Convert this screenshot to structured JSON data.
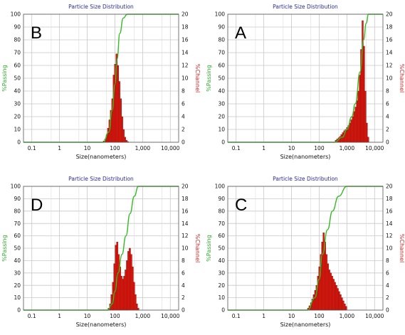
{
  "colors": {
    "grid": "#c8c8c8",
    "plot_border": "#555555",
    "bar_fill": "#e01b10",
    "bar_stroke": "#7a0000",
    "cumulative_line": "#33bb22",
    "title_text": "#2b2b8c"
  },
  "chart_data": [
    {
      "type": "bar",
      "panel_letter": "B",
      "title": "Particle Size Distribution",
      "xlabel": "Size(nanometers)",
      "ylabel_left": "%Passing",
      "ylabel_right": "%Channel",
      "x_scale": "log",
      "xlim": [
        0.05,
        20000
      ],
      "ylim_left": [
        0,
        100
      ],
      "ylim_right": [
        0,
        20
      ],
      "x_ticks": [
        "0.1",
        "1",
        "10",
        "100",
        "1,000",
        "10,000"
      ],
      "y_ticks_left": [
        "0",
        "10",
        "20",
        "30",
        "40",
        "50",
        "60",
        "70",
        "80",
        "90",
        "100"
      ],
      "y_ticks_right": [
        "0",
        "2",
        "4",
        "6",
        "8",
        "10",
        "12",
        "14",
        "16",
        "18",
        "20"
      ],
      "grid": true,
      "channel_sizes_nm": [
        40,
        45,
        51,
        57,
        64,
        72,
        81,
        91,
        102,
        115,
        129,
        145,
        163,
        183,
        206,
        232,
        261,
        293
      ],
      "channel_percent": [
        0.2,
        0.5,
        1.2,
        2.2,
        3.5,
        5.0,
        6.8,
        10.5,
        12.2,
        13.8,
        12.0,
        9.5,
        6.8,
        4.0,
        2.0,
        0.8,
        0.3,
        0.1
      ],
      "cumulative_passing": [
        {
          "size": 0.05,
          "value": 0
        },
        {
          "size": 38,
          "value": 0
        },
        {
          "size": 60,
          "value": 8
        },
        {
          "size": 80,
          "value": 25
        },
        {
          "size": 100,
          "value": 45
        },
        {
          "size": 120,
          "value": 65
        },
        {
          "size": 150,
          "value": 85
        },
        {
          "size": 200,
          "value": 97
        },
        {
          "size": 280,
          "value": 100
        },
        {
          "size": 20000,
          "value": 100
        }
      ]
    },
    {
      "type": "bar",
      "panel_letter": "A",
      "title": "Particle Size Distribution",
      "xlabel": "Size(nanometers)",
      "ylabel_left": "%Passing",
      "ylabel_right": "%Channel",
      "x_scale": "log",
      "xlim": [
        0.05,
        20000
      ],
      "ylim_left": [
        0,
        100
      ],
      "ylim_right": [
        0,
        20
      ],
      "x_ticks": [
        "0.1",
        "1",
        "10",
        "100",
        "1,000",
        "10,000"
      ],
      "y_ticks_left": [
        "0",
        "10",
        "20",
        "30",
        "40",
        "50",
        "60",
        "70",
        "80",
        "90",
        "100"
      ],
      "y_ticks_right": [
        "0",
        "2",
        "4",
        "6",
        "8",
        "10",
        "12",
        "14",
        "16",
        "18",
        "20"
      ],
      "grid": true,
      "channel_sizes_nm": [
        400,
        450,
        510,
        570,
        640,
        720,
        810,
        910,
        1020,
        1150,
        1290,
        1450,
        1630,
        1830,
        2060,
        2320,
        2610,
        2930,
        3290,
        3700,
        4150,
        4660,
        5230,
        5870
      ],
      "channel_percent": [
        0.3,
        0.5,
        0.7,
        0.9,
        1.2,
        1.5,
        1.8,
        2.0,
        2.3,
        2.6,
        3.0,
        3.5,
        4.0,
        4.8,
        5.5,
        6.5,
        8.0,
        10.5,
        14.5,
        19.0,
        15.0,
        8.0,
        3.0,
        0.8
      ],
      "cumulative_passing": [
        {
          "size": 0.05,
          "value": 0
        },
        {
          "size": 350,
          "value": 0
        },
        {
          "size": 700,
          "value": 4
        },
        {
          "size": 1000,
          "value": 10
        },
        {
          "size": 1500,
          "value": 20
        },
        {
          "size": 2000,
          "value": 30
        },
        {
          "size": 3000,
          "value": 55
        },
        {
          "size": 4000,
          "value": 80
        },
        {
          "size": 5000,
          "value": 93
        },
        {
          "size": 6000,
          "value": 100
        },
        {
          "size": 20000,
          "value": 100
        }
      ]
    },
    {
      "type": "bar",
      "panel_letter": "D",
      "title": "Particle Size Distribution",
      "xlabel": "Size(nanometers)",
      "ylabel_left": "%Passing",
      "ylabel_right": "%Channel",
      "x_scale": "log",
      "xlim": [
        0.05,
        20000
      ],
      "ylim_left": [
        0,
        100
      ],
      "ylim_right": [
        0,
        20
      ],
      "x_ticks": [
        "0.1",
        "1",
        "10",
        "100",
        "1,000",
        "10,000"
      ],
      "y_ticks_left": [
        "0",
        "10",
        "20",
        "30",
        "40",
        "50",
        "60",
        "70",
        "80",
        "90",
        "100"
      ],
      "y_ticks_right": [
        "0",
        "2",
        "4",
        "6",
        "8",
        "10",
        "12",
        "14",
        "16",
        "18",
        "20"
      ],
      "grid": true,
      "channel_sizes_nm": [
        60,
        68,
        76,
        86,
        96,
        108,
        121,
        136,
        153,
        172,
        193,
        217,
        244,
        274,
        308,
        346,
        389,
        437,
        491,
        552,
        620,
        697
      ],
      "channel_percent": [
        0.3,
        1.0,
        2.5,
        4.5,
        7.5,
        10.5,
        11.0,
        9.0,
        7.0,
        5.5,
        5.0,
        5.5,
        6.5,
        8.0,
        9.5,
        10.0,
        9.0,
        7.0,
        4.5,
        2.5,
        1.0,
        0.3
      ],
      "cumulative_passing": [
        {
          "size": 0.05,
          "value": 0
        },
        {
          "size": 55,
          "value": 0
        },
        {
          "size": 80,
          "value": 5
        },
        {
          "size": 100,
          "value": 15
        },
        {
          "size": 130,
          "value": 30
        },
        {
          "size": 180,
          "value": 45
        },
        {
          "size": 250,
          "value": 60
        },
        {
          "size": 350,
          "value": 78
        },
        {
          "size": 500,
          "value": 92
        },
        {
          "size": 700,
          "value": 100
        },
        {
          "size": 20000,
          "value": 100
        }
      ]
    },
    {
      "type": "bar",
      "panel_letter": "C",
      "title": "Particle Size Distribution",
      "xlabel": "Size(nanometers)",
      "ylabel_left": "%Passing",
      "ylabel_right": "%Channel",
      "x_scale": "log",
      "xlim": [
        0.05,
        20000
      ],
      "ylim_left": [
        0,
        100
      ],
      "ylim_right": [
        0,
        20
      ],
      "x_ticks": [
        "0.1",
        "1",
        "10",
        "100",
        "1,000",
        "10,000"
      ],
      "y_ticks_left": [
        "0",
        "10",
        "20",
        "30",
        "40",
        "50",
        "60",
        "70",
        "80",
        "90",
        "100"
      ],
      "y_ticks_right": [
        "0",
        "2",
        "4",
        "6",
        "8",
        "10",
        "12",
        "14",
        "16",
        "18",
        "20"
      ],
      "grid": true,
      "channel_sizes_nm": [
        40,
        45,
        51,
        57,
        64,
        72,
        81,
        91,
        102,
        115,
        129,
        145,
        163,
        183,
        206,
        232,
        261,
        293,
        330,
        370,
        416,
        467,
        525,
        590,
        663,
        745,
        837,
        940
      ],
      "channel_percent": [
        0.3,
        0.7,
        1.2,
        1.8,
        2.5,
        3.2,
        4.0,
        5.5,
        7.0,
        9.0,
        11.0,
        12.5,
        11.0,
        9.0,
        7.5,
        6.5,
        6.0,
        5.5,
        5.0,
        4.5,
        4.0,
        3.5,
        3.0,
        2.5,
        2.0,
        1.5,
        1.0,
        0.6
      ],
      "cumulative_passing": [
        {
          "size": 0.05,
          "value": 0
        },
        {
          "size": 38,
          "value": 0
        },
        {
          "size": 70,
          "value": 10
        },
        {
          "size": 100,
          "value": 25
        },
        {
          "size": 130,
          "value": 45
        },
        {
          "size": 200,
          "value": 65
        },
        {
          "size": 300,
          "value": 80
        },
        {
          "size": 500,
          "value": 92
        },
        {
          "size": 1000,
          "value": 100
        },
        {
          "size": 20000,
          "value": 100
        }
      ]
    }
  ]
}
